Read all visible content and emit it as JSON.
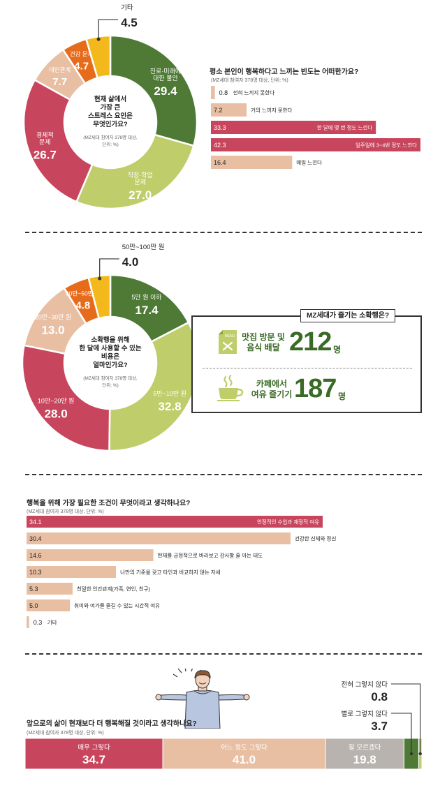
{
  "colors": {
    "dark_green": "#4e7a35",
    "light_green": "#bfcd6a",
    "red": "#c8465d",
    "peach": "#e8bfa3",
    "orange": "#e66b1b",
    "yellow": "#f3b91c",
    "gray": "#b8b3ae"
  },
  "chart_data": [
    {
      "type": "pie",
      "center_text": [
        "현재 삶에서",
        "가장 큰",
        "스트레스 요인은",
        "무엇인가요?"
      ],
      "note": [
        "(MZ세대 참여자 378명 대상,",
        "단위: %)"
      ],
      "slices": [
        {
          "label": [
            "진로·미래에",
            "대한 불안"
          ],
          "value": 29.4,
          "value_label": "29.4",
          "color": "#4e7a35"
        },
        {
          "label": [
            "직장·학업",
            "문제"
          ],
          "value": 27.0,
          "value_label": "27.0",
          "color": "#bfcd6a"
        },
        {
          "label": [
            "경제적",
            "문제"
          ],
          "value": 26.7,
          "value_label": "26.7",
          "color": "#c8465d"
        },
        {
          "label": [
            "대인관계"
          ],
          "value": 7.7,
          "value_label": "7.7",
          "color": "#e8bfa3"
        },
        {
          "label": [
            "건강 문제"
          ],
          "value": 4.7,
          "value_label": "4.7",
          "color": "#e66b1b"
        },
        {
          "label": [
            "기타"
          ],
          "value": 4.5,
          "value_label": "4.5",
          "color": "#f3b91c"
        }
      ]
    },
    {
      "type": "bar",
      "title": "평소 본인이 행복하다고 느끼는 빈도는 어떠한가요?",
      "note": "(MZ세대 참여자 378명 대상, 단위: %)",
      "max": 42.3,
      "bars": [
        {
          "label": "전혀 느끼지 못한다",
          "value": 0.8,
          "value_label": "0.8",
          "color": "#e8bfa3",
          "highlight": false
        },
        {
          "label": "거의 느끼지 못한다",
          "value": 7.2,
          "value_label": "7.2",
          "color": "#e8bfa3",
          "highlight": false
        },
        {
          "label": "한 달에 몇 번 정도 느낀다",
          "value": 33.3,
          "value_label": "33.3",
          "color": "#c8465d",
          "highlight": true
        },
        {
          "label": "일주일에 3~4번 정도 느낀다",
          "value": 42.3,
          "value_label": "42.3",
          "color": "#c8465d",
          "highlight": true
        },
        {
          "label": "매일 느낀다",
          "value": 16.4,
          "value_label": "16.4",
          "color": "#e8bfa3",
          "highlight": false
        }
      ]
    },
    {
      "type": "pie",
      "center_text": [
        "소확행을 위해",
        "한 달에 사용할 수 있는",
        "비용은",
        "얼마인가요?"
      ],
      "note": [
        "(MZ세대 참여자 378명 대상,",
        "단위: %)"
      ],
      "slices": [
        {
          "label": [
            "5만 원 이하"
          ],
          "value": 17.4,
          "value_label": "17.4",
          "color": "#4e7a35"
        },
        {
          "label": [
            "5만~10만 원"
          ],
          "value": 32.8,
          "value_label": "32.8",
          "color": "#bfcd6a"
        },
        {
          "label": [
            "10만~20만 원"
          ],
          "value": 28.0,
          "value_label": "28.0",
          "color": "#c8465d"
        },
        {
          "label": [
            "20만~30만 원"
          ],
          "value": 13.0,
          "value_label": "13.0",
          "color": "#e8bfa3"
        },
        {
          "label": [
            "30만~50만 원"
          ],
          "value": 4.8,
          "value_label": "4.8",
          "color": "#e66b1b"
        },
        {
          "label": [
            "50만~100만 원"
          ],
          "value": 4.0,
          "value_label": "4.0",
          "color": "#f3b91c"
        }
      ]
    },
    {
      "type": "bar",
      "title": "행복을 위해 가장 필요한 조건이 무엇이라고 생각하나요?",
      "note": "(MZ세대 참여자 378명 대상, 단위: %)",
      "max": 34.1,
      "bars": [
        {
          "label": "안정적인 수입과 재정적 여유",
          "value": 34.1,
          "value_label": "34.1",
          "color": "#c8465d",
          "highlight": true
        },
        {
          "label": "건강한 신체와 정신",
          "value": 30.4,
          "value_label": "30.4",
          "color": "#e8bfa3",
          "highlight": false
        },
        {
          "label": "현재를 긍정적으로 바라보고 감사할 줄 아는 태도",
          "value": 14.6,
          "value_label": "14.6",
          "color": "#e8bfa3",
          "highlight": false
        },
        {
          "label": "나만의 기준을 갖고 타인과 비교하지 않는 자세",
          "value": 10.3,
          "value_label": "10.3",
          "color": "#e8bfa3",
          "highlight": false
        },
        {
          "label": "친밀한 인간관계(가족, 연인, 친구)",
          "value": 5.3,
          "value_label": "5.3",
          "color": "#e8bfa3",
          "highlight": false
        },
        {
          "label": "취미와 여가를 즐길 수 있는 시간적 여유",
          "value": 5.0,
          "value_label": "5.0",
          "color": "#e8bfa3",
          "highlight": false
        },
        {
          "label": "기타",
          "value": 0.3,
          "value_label": "0.3",
          "color": "#e8bfa3",
          "highlight": false
        }
      ]
    },
    {
      "type": "bar",
      "title": "앞으로의 삶이 현재보다 더 행복해질 것이라고 생각하나요?",
      "note": "(MZ세대 참여자 378명 대상, 단위: %)",
      "segments": [
        {
          "label": "매우 그렇다",
          "value": 34.7,
          "value_label": "34.7",
          "color": "#c8465d"
        },
        {
          "label": "어느 정도 그렇다",
          "value": 41.0,
          "value_label": "41.0",
          "color": "#e8bfa3"
        },
        {
          "label": "잘 모르겠다",
          "value": 19.8,
          "value_label": "19.8",
          "color": "#b8b3ae"
        },
        {
          "label": "별로 그렇지 않다",
          "value": 3.7,
          "value_label": "3.7",
          "color": "#4e7a35"
        },
        {
          "label": "전혀 그렇지 않다",
          "value": 0.8,
          "value_label": "0.8",
          "color": "#bfcd6a"
        }
      ]
    }
  ],
  "sohwakhaeng": {
    "title": "MZ세대가 즐기는 소확행은?",
    "items": [
      {
        "label_line1": "맛집 방문 및",
        "label_line2": "음식 배달",
        "count": "212",
        "unit": "명",
        "icon": "menu-card-icon",
        "icon_text": "MENU"
      },
      {
        "label_line1": "카페에서",
        "label_line2": "여유 즐기기",
        "count": "187",
        "unit": "명",
        "icon": "coffee-cup-icon"
      }
    ]
  }
}
